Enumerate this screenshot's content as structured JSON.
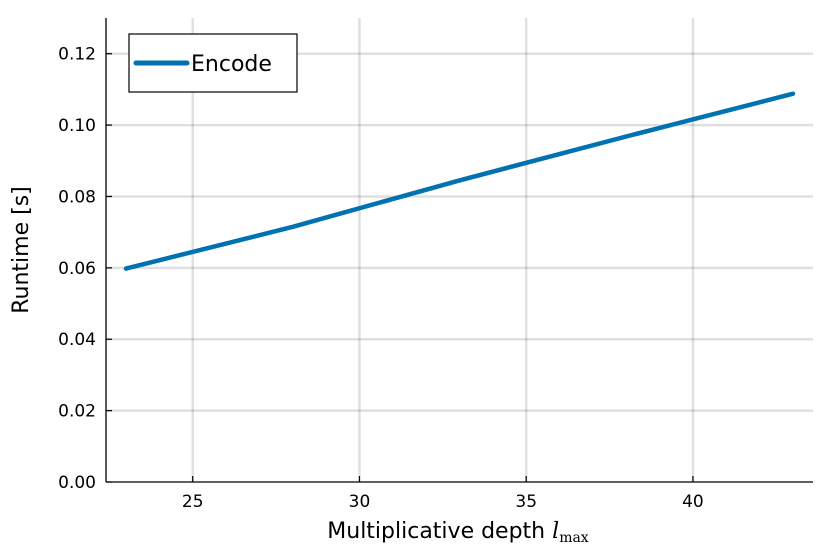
{
  "chart_data": {
    "type": "line",
    "title": "",
    "xlabel": "Multiplicative depth",
    "xlabel_symbol": "l",
    "xlabel_subscript": "max",
    "ylabel": "Runtime [s]",
    "xlim": [
      22.4,
      43.6
    ],
    "ylim": [
      0.0,
      0.13
    ],
    "xticks": [
      25,
      30,
      35,
      40
    ],
    "xtick_labels": [
      "25",
      "30",
      "35",
      "40"
    ],
    "yticks": [
      0.0,
      0.02,
      0.04,
      0.06,
      0.08,
      0.1,
      0.12
    ],
    "ytick_labels": [
      "0.00",
      "0.02",
      "0.04",
      "0.06",
      "0.08",
      "0.10",
      "0.12"
    ],
    "grid": true,
    "legend_position": "top-left",
    "series": [
      {
        "name": "Encode",
        "color": "#0072b2",
        "x": [
          23,
          28,
          33,
          38,
          43
        ],
        "y": [
          0.0598,
          0.0715,
          0.0845,
          0.0968,
          0.1088
        ]
      }
    ]
  }
}
